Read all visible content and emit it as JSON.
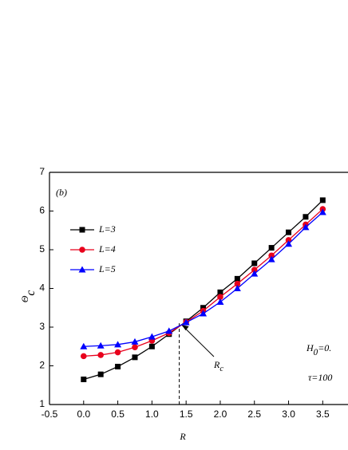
{
  "chart_data": {
    "type": "line",
    "x": [
      0,
      0.25,
      0.5,
      0.75,
      1.0,
      1.25,
      1.5,
      1.75,
      2.0,
      2.25,
      2.5,
      2.75,
      3.0,
      3.25,
      3.5
    ],
    "series": [
      {
        "name": "L=3",
        "color": "#000000",
        "marker": "square",
        "values": [
          1.65,
          1.78,
          1.98,
          2.22,
          2.5,
          2.82,
          3.15,
          3.5,
          3.9,
          4.25,
          4.65,
          5.05,
          5.45,
          5.85,
          6.28
        ]
      },
      {
        "name": "L=4",
        "color": "#e8001c",
        "marker": "circle",
        "values": [
          2.25,
          2.28,
          2.35,
          2.48,
          2.65,
          2.85,
          3.13,
          3.42,
          3.78,
          4.12,
          4.48,
          4.85,
          5.25,
          5.65,
          6.05
        ]
      },
      {
        "name": "L=5",
        "color": "#0000ff",
        "marker": "triangle",
        "values": [
          2.5,
          2.52,
          2.55,
          2.62,
          2.75,
          2.9,
          3.12,
          3.35,
          3.65,
          4.0,
          4.38,
          4.75,
          5.15,
          5.58,
          5.97
        ]
      }
    ],
    "xlabel": "R",
    "ylabel": {
      "text": "Θ",
      "sub": "c"
    },
    "xlim": [
      -0.5,
      3.87
    ],
    "ylim": [
      1,
      7
    ],
    "xticks": [
      -0.5,
      {
        "value": 0,
        "label": "0.0"
      },
      0.5,
      {
        "value": 1,
        "label": "1.0"
      },
      1.5,
      {
        "value": 2,
        "label": "2.0"
      },
      2.5,
      {
        "value": 3,
        "label": "3.0"
      },
      3.5
    ],
    "yticks": [
      1,
      2,
      3,
      4,
      5,
      6,
      7
    ],
    "panel_label": "(b)",
    "critical": {
      "x": 1.4,
      "y": 3.1,
      "label": {
        "text": "R",
        "sub": "c"
      }
    },
    "params": [
      {
        "text": "H",
        "sub": "0",
        "rest": "=0."
      },
      {
        "text": "τ=100"
      }
    ]
  }
}
